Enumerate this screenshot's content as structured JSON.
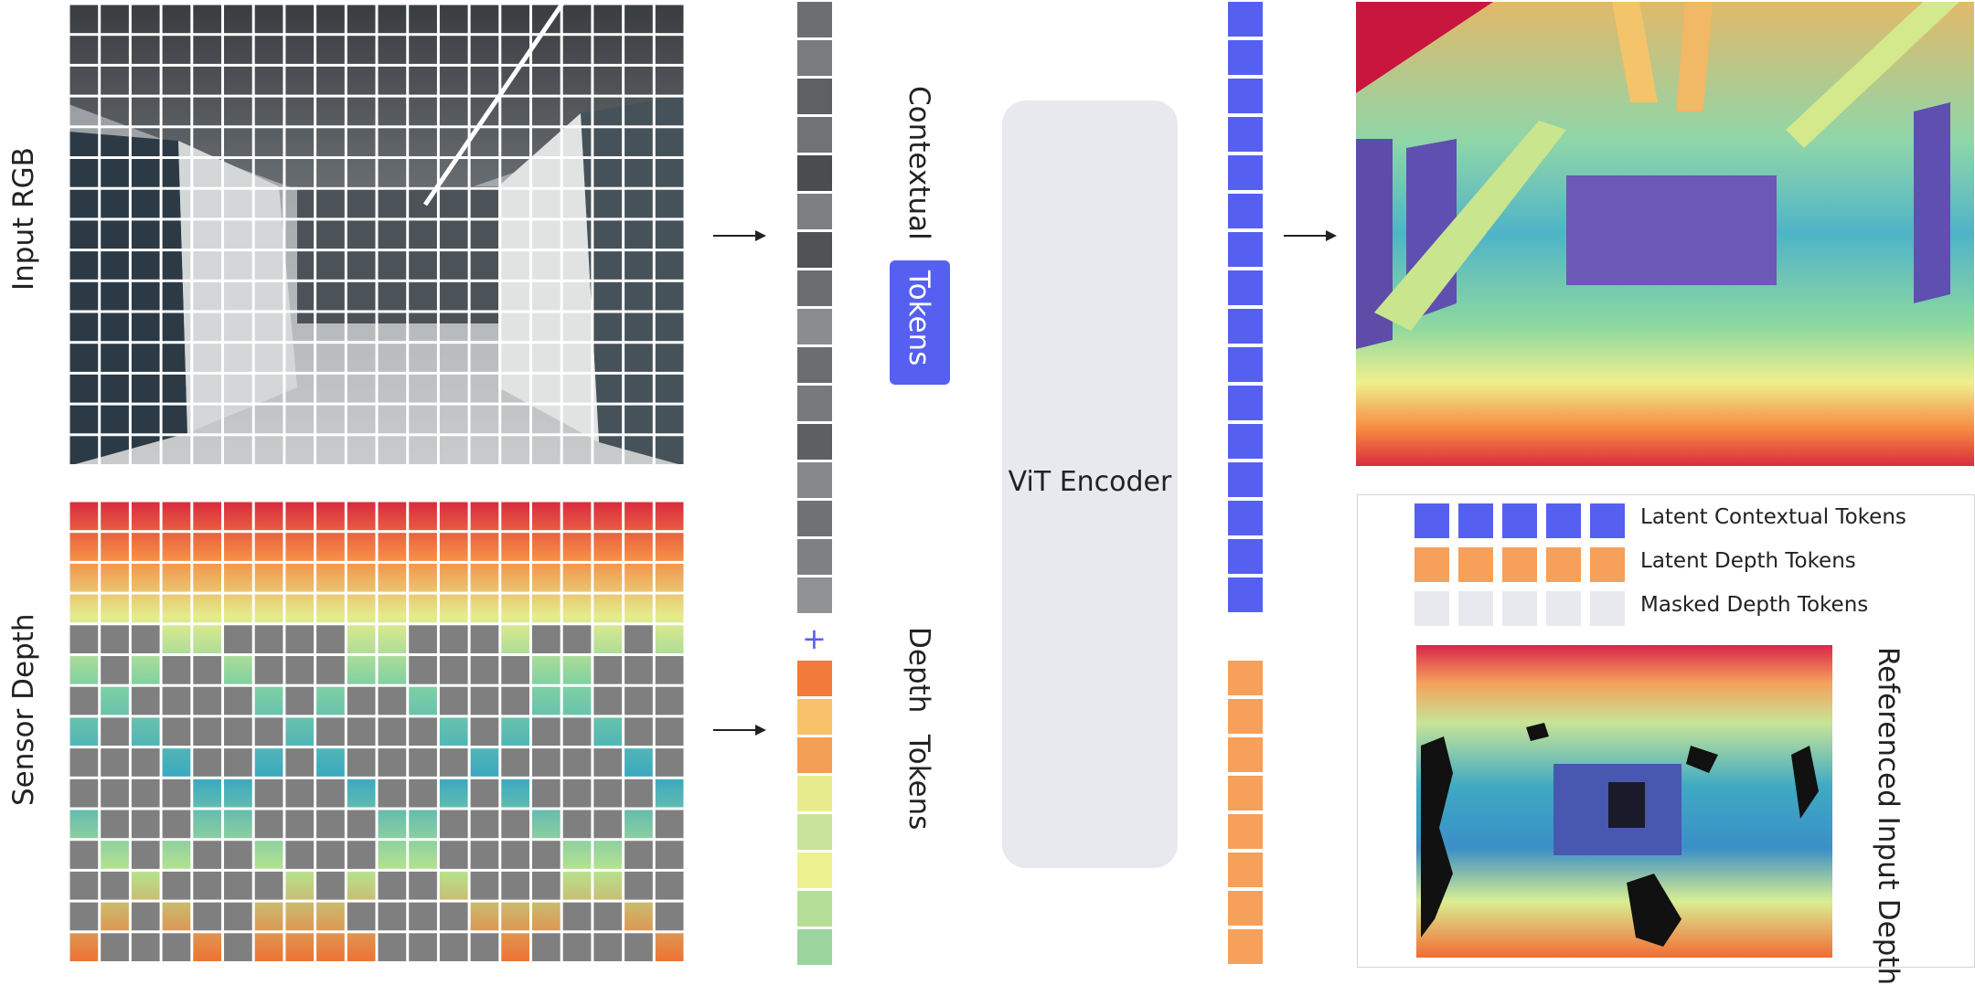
{
  "labels": {
    "input_rgb": "Input RGB",
    "sensor_depth": "Sensor Depth",
    "contextual": "Contextual",
    "tokens_badge": "Tokens",
    "depth": "Depth",
    "depth_tokens_word": "Tokens",
    "encoder": "ViT Encoder",
    "referenced": "Referenced Input Depth",
    "plus": "+"
  },
  "legend": [
    {
      "label": "Latent Contextual Tokens",
      "color": "#5560f0"
    },
    {
      "label": "Latent Depth Tokens",
      "color": "#f6a05a"
    },
    {
      "label": "Masked Depth Tokens",
      "color": "#e8e9ee"
    }
  ],
  "colors": {
    "contextual_token": "#5560f0",
    "depth_token": "#f6a05a",
    "masked_token": "#7f7f7f",
    "encoder_bg": "#e8e9ee"
  },
  "icons": {
    "arrow": "right-arrow-icon"
  }
}
